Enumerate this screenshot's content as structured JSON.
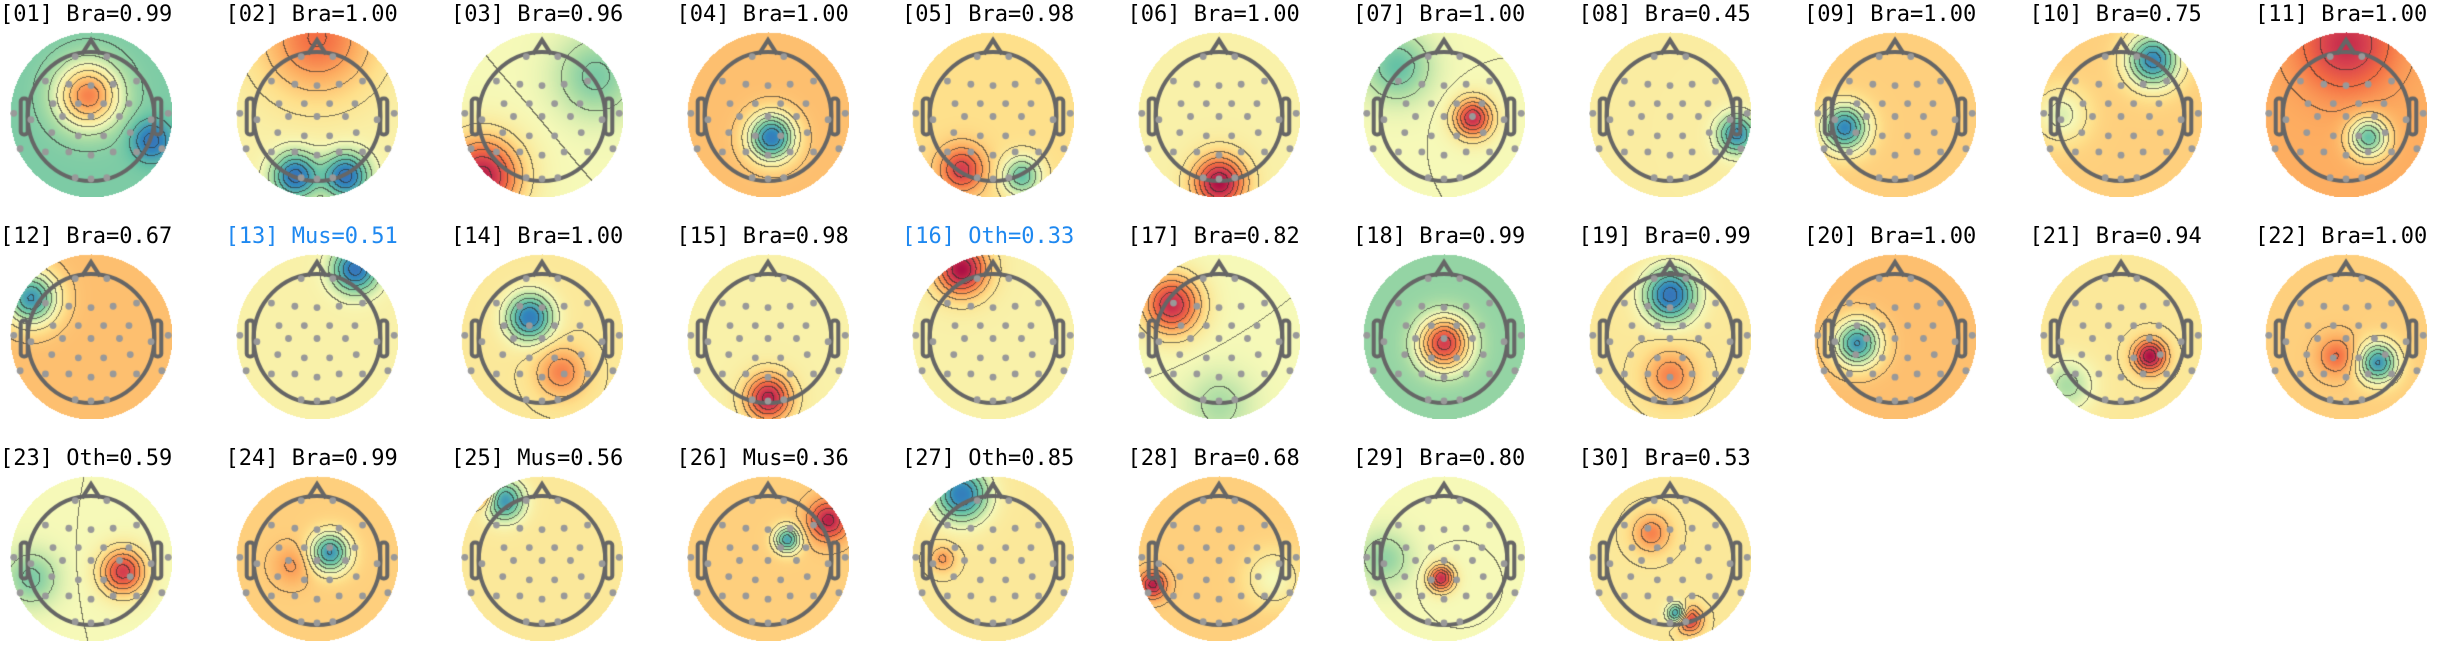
{
  "chart_data": {
    "type": "heatmap",
    "title": "",
    "grid_layout": {
      "columns": 11,
      "rows": 3
    },
    "colormap": "spectral (blue = negative, pale yellow = zero, red = positive)",
    "highlight_color": "#1e88f0",
    "components": [
      {
        "id": "[01]",
        "label": "Bra=0.99",
        "highlight": false
      },
      {
        "id": "[02]",
        "label": "Bra=1.00",
        "highlight": false
      },
      {
        "id": "[03]",
        "label": "Bra=0.96",
        "highlight": false
      },
      {
        "id": "[04]",
        "label": "Bra=1.00",
        "highlight": false
      },
      {
        "id": "[05]",
        "label": "Bra=0.98",
        "highlight": false
      },
      {
        "id": "[06]",
        "label": "Bra=1.00",
        "highlight": false
      },
      {
        "id": "[07]",
        "label": "Bra=1.00",
        "highlight": false
      },
      {
        "id": "[08]",
        "label": "Bra=0.45",
        "highlight": false
      },
      {
        "id": "[09]",
        "label": "Bra=1.00",
        "highlight": false
      },
      {
        "id": "[10]",
        "label": "Bra=0.75",
        "highlight": false
      },
      {
        "id": "[11]",
        "label": "Bra=1.00",
        "highlight": false
      },
      {
        "id": "[12]",
        "label": "Bra=0.67",
        "highlight": false
      },
      {
        "id": "[13]",
        "label": "Mus=0.51",
        "highlight": true
      },
      {
        "id": "[14]",
        "label": "Bra=1.00",
        "highlight": false
      },
      {
        "id": "[15]",
        "label": "Bra=0.98",
        "highlight": false
      },
      {
        "id": "[16]",
        "label": "Oth=0.33",
        "highlight": true
      },
      {
        "id": "[17]",
        "label": "Bra=0.82",
        "highlight": false
      },
      {
        "id": "[18]",
        "label": "Bra=0.99",
        "highlight": false
      },
      {
        "id": "[19]",
        "label": "Bra=0.99",
        "highlight": false
      },
      {
        "id": "[20]",
        "label": "Bra=1.00",
        "highlight": false
      },
      {
        "id": "[21]",
        "label": "Bra=0.94",
        "highlight": false
      },
      {
        "id": "[22]",
        "label": "Bra=1.00",
        "highlight": false
      },
      {
        "id": "[23]",
        "label": "Oth=0.59",
        "highlight": false
      },
      {
        "id": "[24]",
        "label": "Bra=0.99",
        "highlight": false
      },
      {
        "id": "[25]",
        "label": "Mus=0.56",
        "highlight": false
      },
      {
        "id": "[26]",
        "label": "Mus=0.36",
        "highlight": false
      },
      {
        "id": "[27]",
        "label": "Oth=0.85",
        "highlight": false
      },
      {
        "id": "[28]",
        "label": "Bra=0.68",
        "highlight": false
      },
      {
        "id": "[29]",
        "label": "Bra=0.80",
        "highlight": false
      },
      {
        "id": "[30]",
        "label": "Bra=0.53",
        "highlight": false
      }
    ]
  }
}
